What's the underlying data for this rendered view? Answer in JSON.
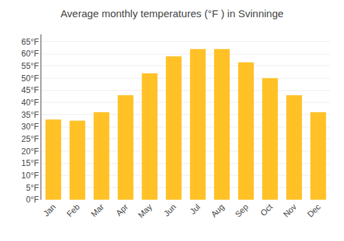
{
  "chart_data": {
    "type": "bar",
    "title": "Average monthly temperatures (°F ) in Svinninge",
    "categories": [
      "Jan",
      "Feb",
      "Mar",
      "Apr",
      "May",
      "Jun",
      "Jul",
      "Aug",
      "Sep",
      "Oct",
      "Nov",
      "Dec"
    ],
    "values": [
      33.0,
      32.5,
      36.0,
      43.0,
      52.0,
      59.0,
      62.0,
      62.0,
      56.5,
      50.0,
      43.0,
      36.0
    ],
    "color": "#FFC125",
    "ylim": [
      0,
      68
    ],
    "yticks": [
      {
        "value": 0,
        "label": "0°F"
      },
      {
        "value": 5,
        "label": "5°F"
      },
      {
        "value": 10,
        "label": "10°F"
      },
      {
        "value": 15,
        "label": "15°F"
      },
      {
        "value": 20,
        "label": "20°F"
      },
      {
        "value": 25,
        "label": "25°F"
      },
      {
        "value": 30,
        "label": "30°F"
      },
      {
        "value": 35,
        "label": "35°F"
      },
      {
        "value": 40,
        "label": "40°F"
      },
      {
        "value": 45,
        "label": "45°F"
      },
      {
        "value": 50,
        "label": "50°F"
      },
      {
        "value": 55,
        "label": "55°F"
      },
      {
        "value": 60,
        "label": "60°F"
      },
      {
        "value": 65,
        "label": "65°F"
      }
    ],
    "grid": true
  }
}
